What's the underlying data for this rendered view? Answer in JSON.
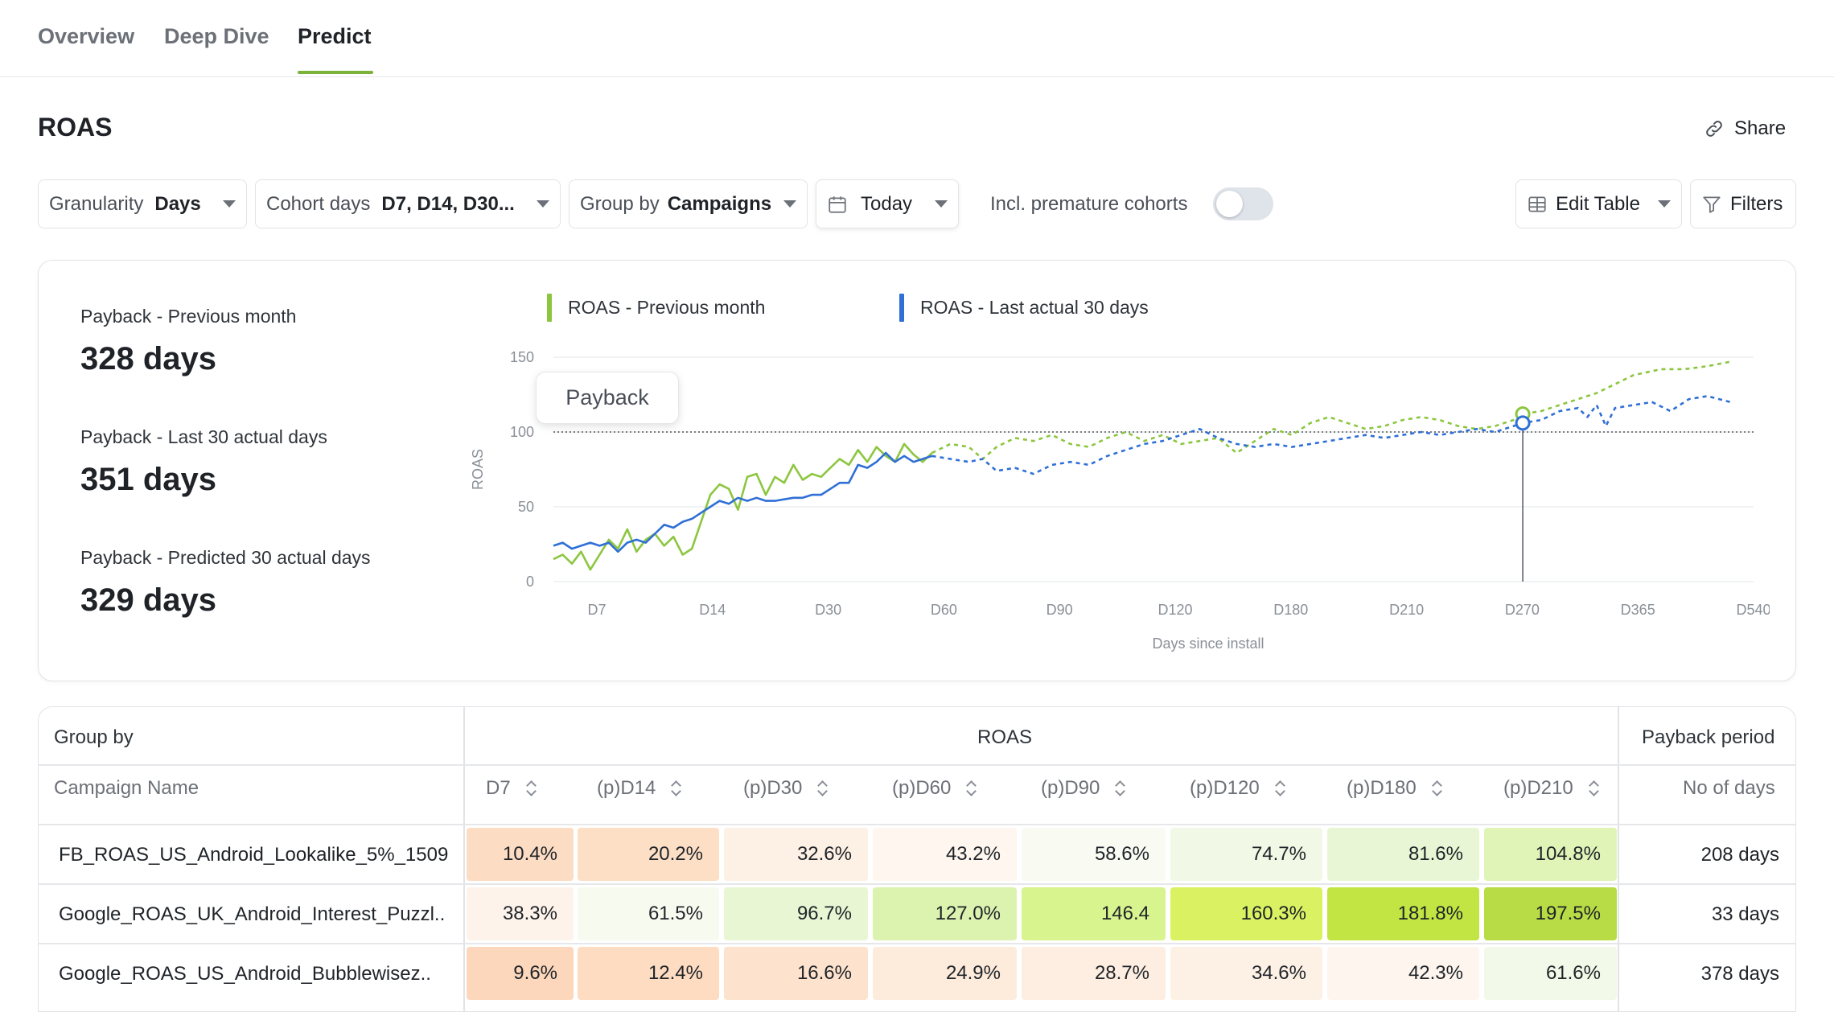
{
  "tabs": [
    {
      "label": "Overview",
      "active": false
    },
    {
      "label": "Deep Dive",
      "active": false
    },
    {
      "label": "Predict",
      "active": true
    }
  ],
  "page": {
    "title": "ROAS",
    "share_label": "Share"
  },
  "toolbar": {
    "granularity": {
      "label": "Granularity",
      "value": "Days"
    },
    "cohort_days": {
      "label": "Cohort days",
      "value": "D7, D14, D30..."
    },
    "group_by": {
      "label": "Group by",
      "value": "Campaigns"
    },
    "date": {
      "value": "Today"
    },
    "premature": {
      "label": "Incl. premature cohorts",
      "enabled": false
    },
    "edit_table": "Edit Table",
    "filters": "Filters"
  },
  "kpis": [
    {
      "label": "Payback - Previous month",
      "value": "328 days"
    },
    {
      "label": "Payback - Last 30 actual days",
      "value": "351 days"
    },
    {
      "label": "Payback - Predicted 30 actual days",
      "value": "329 days"
    }
  ],
  "tooltip": {
    "label": "Payback"
  },
  "colors": {
    "accent": "#7ab23a",
    "green_series": "#8cc63f",
    "blue_series": "#2f6fd6"
  },
  "chart_data": {
    "type": "line",
    "ylabel": "ROAS",
    "xlabel": "Days since install",
    "ylim": [
      0,
      150
    ],
    "y_ticks": [
      0,
      50,
      100,
      150
    ],
    "x_tick_labels": [
      "D7",
      "D14",
      "D30",
      "D60",
      "D90",
      "D120",
      "D180",
      "D210",
      "D270",
      "D365",
      "D540"
    ],
    "reference_line": 100,
    "payback_marker_index": 21,
    "x_index_max": 26,
    "series": [
      {
        "name": "ROAS - Previous month",
        "color": "#8cc63f",
        "actual": [
          [
            0,
            15
          ],
          [
            0.2,
            18
          ],
          [
            0.4,
            12
          ],
          [
            0.6,
            20
          ],
          [
            0.8,
            8
          ],
          [
            1,
            18
          ],
          [
            1.2,
            28
          ],
          [
            1.4,
            22
          ],
          [
            1.6,
            35
          ],
          [
            1.8,
            20
          ],
          [
            2,
            28
          ],
          [
            2.2,
            32
          ],
          [
            2.4,
            24
          ],
          [
            2.6,
            30
          ],
          [
            2.8,
            18
          ],
          [
            3,
            22
          ],
          [
            3.2,
            40
          ],
          [
            3.4,
            58
          ],
          [
            3.6,
            65
          ],
          [
            3.8,
            62
          ],
          [
            4,
            48
          ],
          [
            4.2,
            70
          ],
          [
            4.4,
            72
          ],
          [
            4.6,
            58
          ],
          [
            4.8,
            70
          ],
          [
            5,
            66
          ],
          [
            5.2,
            78
          ],
          [
            5.4,
            68
          ],
          [
            5.6,
            72
          ],
          [
            5.8,
            70
          ],
          [
            6,
            76
          ],
          [
            6.2,
            82
          ],
          [
            6.4,
            78
          ],
          [
            6.6,
            88
          ],
          [
            6.8,
            80
          ],
          [
            7,
            90
          ],
          [
            7.2,
            84
          ],
          [
            7.4,
            80
          ],
          [
            7.6,
            92
          ],
          [
            7.8,
            85
          ],
          [
            8,
            80
          ],
          [
            8.2,
            86
          ]
        ],
        "predicted": [
          [
            8.2,
            86
          ],
          [
            8.6,
            92
          ],
          [
            9,
            90
          ],
          [
            9.3,
            82
          ],
          [
            9.6,
            90
          ],
          [
            10,
            96
          ],
          [
            10.4,
            94
          ],
          [
            10.8,
            98
          ],
          [
            11.2,
            92
          ],
          [
            11.6,
            90
          ],
          [
            12,
            96
          ],
          [
            12.4,
            100
          ],
          [
            12.8,
            94
          ],
          [
            13.2,
            98
          ],
          [
            13.6,
            92
          ],
          [
            14,
            94
          ],
          [
            14.4,
            96
          ],
          [
            14.8,
            86
          ],
          [
            15.2,
            94
          ],
          [
            15.6,
            102
          ],
          [
            16,
            98
          ],
          [
            16.4,
            106
          ],
          [
            16.8,
            110
          ],
          [
            17.2,
            106
          ],
          [
            17.6,
            102
          ],
          [
            18,
            104
          ],
          [
            18.4,
            108
          ],
          [
            18.8,
            110
          ],
          [
            19.2,
            108
          ],
          [
            19.6,
            104
          ],
          [
            20,
            102
          ],
          [
            20.4,
            104
          ],
          [
            20.8,
            108
          ],
          [
            21,
            112
          ],
          [
            21.4,
            114
          ],
          [
            21.8,
            118
          ],
          [
            22.2,
            122
          ],
          [
            22.6,
            126
          ],
          [
            23,
            132
          ],
          [
            23.4,
            138
          ],
          [
            24,
            142
          ],
          [
            24.5,
            142
          ],
          [
            25,
            144
          ],
          [
            25.5,
            147
          ]
        ]
      },
      {
        "name": "ROAS - Last actual 30 days",
        "color": "#2f6fd6",
        "actual": [
          [
            0,
            24
          ],
          [
            0.2,
            26
          ],
          [
            0.4,
            22
          ],
          [
            0.6,
            24
          ],
          [
            0.8,
            26
          ],
          [
            1,
            24
          ],
          [
            1.2,
            26
          ],
          [
            1.4,
            20
          ],
          [
            1.6,
            26
          ],
          [
            1.8,
            28
          ],
          [
            2,
            26
          ],
          [
            2.2,
            32
          ],
          [
            2.4,
            38
          ],
          [
            2.6,
            36
          ],
          [
            2.8,
            40
          ],
          [
            3,
            42
          ],
          [
            3.2,
            46
          ],
          [
            3.4,
            50
          ],
          [
            3.6,
            54
          ],
          [
            3.8,
            52
          ],
          [
            4,
            56
          ],
          [
            4.2,
            54
          ],
          [
            4.4,
            56
          ],
          [
            4.6,
            54
          ],
          [
            4.8,
            54
          ],
          [
            5,
            55
          ],
          [
            5.2,
            56
          ],
          [
            5.4,
            56
          ],
          [
            5.6,
            58
          ],
          [
            5.8,
            58
          ],
          [
            6,
            62
          ],
          [
            6.2,
            66
          ],
          [
            6.4,
            66
          ],
          [
            6.6,
            78
          ],
          [
            6.8,
            76
          ],
          [
            7,
            80
          ],
          [
            7.2,
            86
          ],
          [
            7.4,
            80
          ],
          [
            7.6,
            84
          ],
          [
            7.8,
            80
          ],
          [
            8,
            82
          ],
          [
            8.2,
            84
          ]
        ],
        "predicted": [
          [
            8.2,
            84
          ],
          [
            8.6,
            82
          ],
          [
            9,
            80
          ],
          [
            9.3,
            82
          ],
          [
            9.6,
            74
          ],
          [
            10,
            76
          ],
          [
            10.4,
            72
          ],
          [
            10.8,
            78
          ],
          [
            11.2,
            80
          ],
          [
            11.6,
            78
          ],
          [
            12,
            84
          ],
          [
            12.4,
            88
          ],
          [
            12.8,
            92
          ],
          [
            13.2,
            94
          ],
          [
            13.6,
            98
          ],
          [
            14,
            102
          ],
          [
            14.4,
            96
          ],
          [
            14.8,
            92
          ],
          [
            15.2,
            90
          ],
          [
            15.6,
            92
          ],
          [
            16,
            90
          ],
          [
            16.4,
            92
          ],
          [
            16.8,
            94
          ],
          [
            17.2,
            96
          ],
          [
            17.6,
            98
          ],
          [
            18,
            96
          ],
          [
            18.4,
            98
          ],
          [
            18.8,
            100
          ],
          [
            19.2,
            98
          ],
          [
            19.6,
            100
          ],
          [
            20,
            102
          ],
          [
            20.4,
            100
          ],
          [
            20.8,
            104
          ],
          [
            21,
            106
          ],
          [
            21.4,
            108
          ],
          [
            21.8,
            114
          ],
          [
            22.2,
            116
          ],
          [
            22.4,
            110
          ],
          [
            22.6,
            118
          ],
          [
            22.8,
            104
          ],
          [
            23,
            116
          ],
          [
            23.4,
            118
          ],
          [
            23.8,
            120
          ],
          [
            24.2,
            114
          ],
          [
            24.6,
            122
          ],
          [
            25,
            124
          ],
          [
            25.5,
            120
          ]
        ]
      }
    ]
  },
  "table": {
    "group_by_header": "Group by",
    "roas_header": "ROAS",
    "payback_header": "Payback period",
    "name_col": "Campaign Name",
    "columns": [
      "D7",
      "(p)D14",
      "(p)D30",
      "(p)D60",
      "(p)D90",
      "(p)D120",
      "(p)D180",
      "(p)D210"
    ],
    "days_col": "No of days",
    "rows": [
      {
        "name": "FB_ROAS_US_Android_Lookalike_5%_1509",
        "values": [
          "10.4%",
          "20.2%",
          "32.6%",
          "43.2%",
          "58.6%",
          "74.7%",
          "81.6%",
          "104.8%"
        ],
        "colors": [
          "#fcdcc3",
          "#fddfc6",
          "#fdf0e4",
          "#fef6ef",
          "#f9fbf3",
          "#f1f9e6",
          "#e9f6d5",
          "#e0f4b8"
        ],
        "days": "208 days"
      },
      {
        "name": "Google_ROAS_UK_Android_Interest_Puzzl..",
        "values": [
          "38.3%",
          "61.5%",
          "96.7%",
          "127.0%",
          "146.4",
          "160.3%",
          "181.8%",
          "197.5%"
        ],
        "colors": [
          "#fdf3ea",
          "#f7fbef",
          "#e8f6d4",
          "#dcf3b0",
          "#d8f48f",
          "#daf262",
          "#c3e543",
          "#b8dc45"
        ],
        "days": "33 days"
      },
      {
        "name": "Google_ROAS_US_Android_Bubblewisez..",
        "values": [
          "9.6%",
          "12.4%",
          "16.6%",
          "24.9%",
          "28.7%",
          "34.6%",
          "42.3%",
          "61.6%"
        ],
        "colors": [
          "#fcd7bb",
          "#fddcc2",
          "#fde3cd",
          "#fdebdb",
          "#fdeee1",
          "#fdf1e6",
          "#fdf5ee",
          "#f3f9e8"
        ],
        "days": "378 days"
      }
    ]
  }
}
